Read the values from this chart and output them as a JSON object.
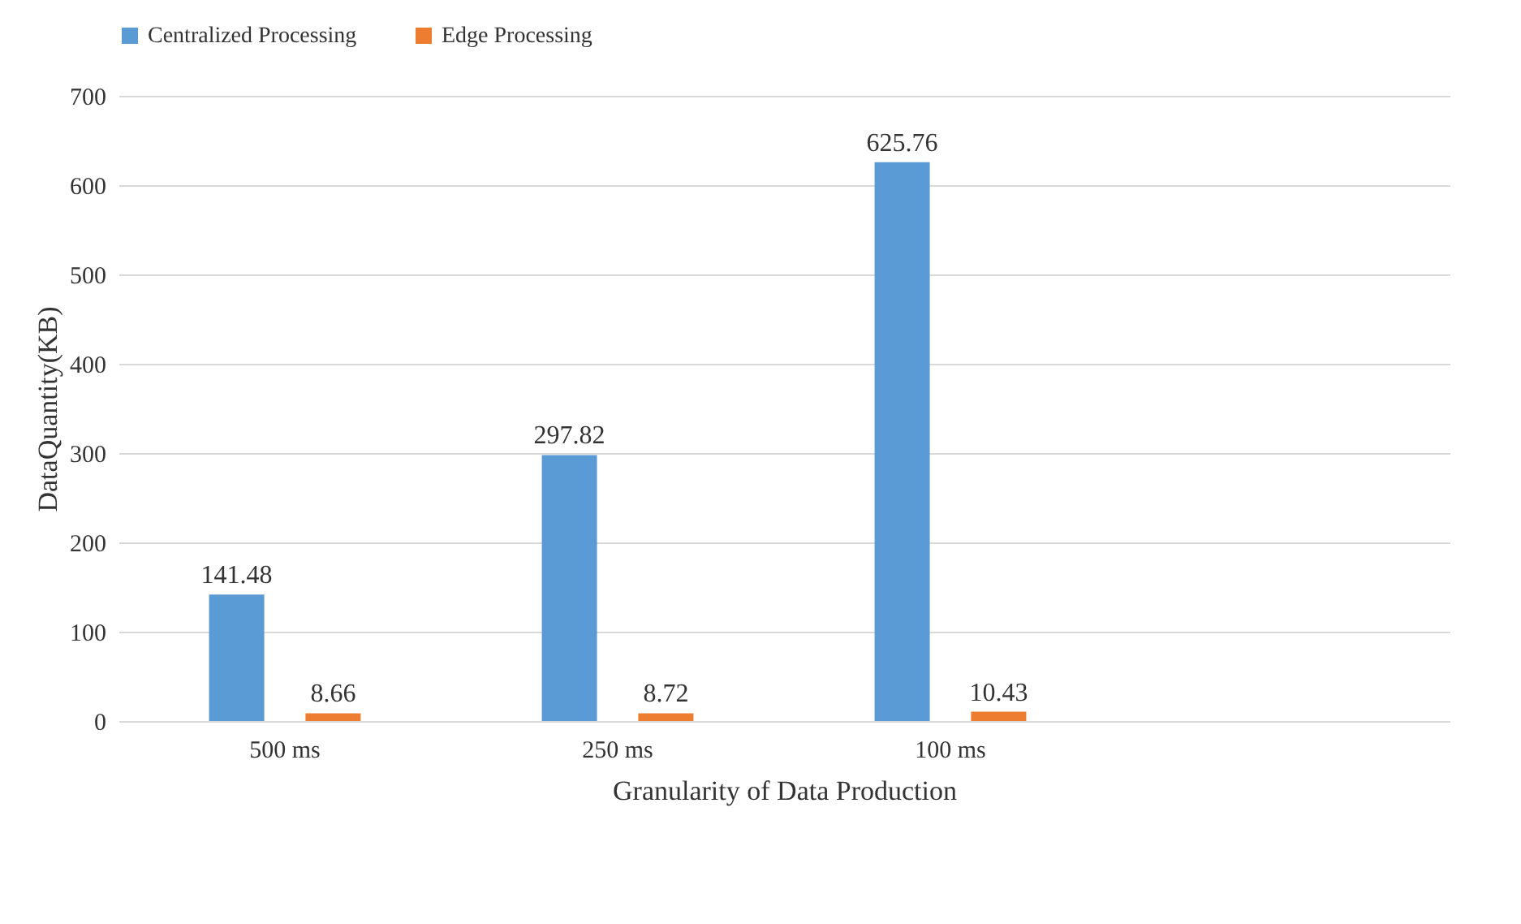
{
  "chart_data": {
    "type": "bar",
    "xlabel": "Granularity of Data Production",
    "ylabel": "DataQuantity(KB)",
    "categories": [
      "500 ms",
      "250 ms",
      "100 ms",
      null
    ],
    "series": [
      {
        "name": "Centralized  Processing",
        "color": "#5b9bd5",
        "values": [
          141.48,
          297.82,
          625.76,
          null
        ]
      },
      {
        "name": "Edge  Processing",
        "color": "#ed7d31",
        "values": [
          8.66,
          8.72,
          10.43,
          null
        ]
      }
    ],
    "ylim": [
      0,
      700
    ],
    "yticks": [
      0,
      100,
      200,
      300,
      400,
      500,
      600,
      700
    ],
    "grid": "y",
    "legend": "top",
    "data_labels": true
  }
}
